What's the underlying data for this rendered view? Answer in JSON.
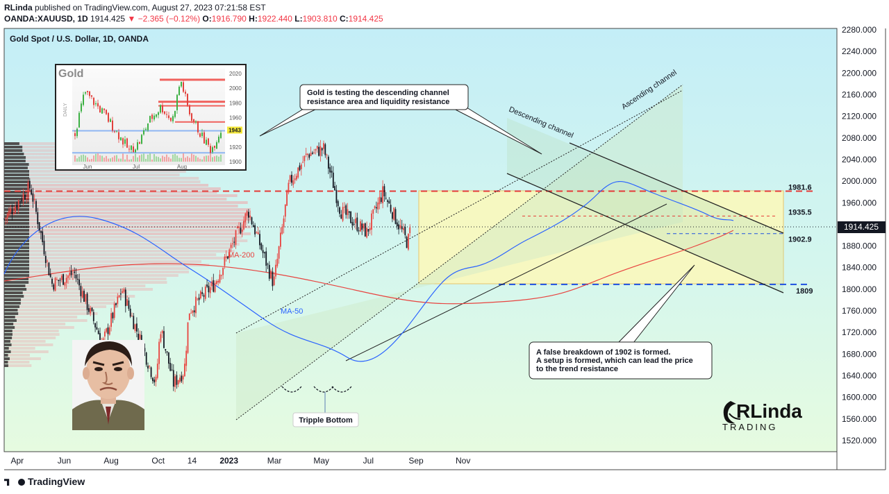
{
  "header": {
    "author": "RLinda",
    "published_text": "published on TradingView.com, August 27, 2023 07:21:58 EST",
    "symbol": "OANDA:XAUUSD, 1D",
    "last": "1914.425",
    "change": "−2.365 (−0.12%)",
    "o_label": "O:",
    "o": "1916.790",
    "h_label": "H:",
    "h": "1922.440",
    "l_label": "L:",
    "l": "1903.810",
    "c_label": "C:",
    "c": "1914.425"
  },
  "footer": {
    "brand": "TradingView"
  },
  "colors": {
    "bg_top": "#c9f0f7",
    "bg_bottom": "#e4fbe0",
    "up": "#e8433f",
    "down": "#131722",
    "ma200": "#e8433f",
    "ma50": "#2962ff",
    "resistance": "#e53935",
    "support": "#1e50e0",
    "zone_yellow": "#fdf8b8",
    "channel_fill": "#cfe9c8"
  },
  "chart_data": {
    "type": "candlestick",
    "title": "Gold Spot / U.S. Dollar, 1D, OANDA",
    "y_axis": {
      "range": [
        1500,
        2285
      ],
      "ticks": [
        "2280.000",
        "2240.000",
        "2200.000",
        "2160.000",
        "2120.000",
        "2080.000",
        "2040.000",
        "2000.000",
        "1960.000",
        "1920.000",
        "1880.000",
        "1840.000",
        "1800.000",
        "1760.000",
        "1720.000",
        "1680.000",
        "1640.000",
        "1600.000",
        "1560.000",
        "1520.000"
      ],
      "current_price_label": "1914.425"
    },
    "x_axis": {
      "ticks": [
        "Apr",
        "Jun",
        "Aug",
        "Oct",
        "14",
        "2023",
        "Mar",
        "May",
        "Jul",
        "Sep",
        "Nov"
      ]
    },
    "price_levels": [
      {
        "label": "1981.6",
        "value": 1981.6
      },
      {
        "label": "1935.5",
        "value": 1935.5
      },
      {
        "label": "1902.9",
        "value": 1902.9
      },
      {
        "label": "1809",
        "value": 1809
      }
    ],
    "indicators": [
      {
        "name": "MA-200",
        "color": "#e8433f"
      },
      {
        "name": "MA-50",
        "color": "#2962ff"
      }
    ],
    "close_path": [
      {
        "d": "2022-03-15",
        "v": 1930
      },
      {
        "d": "2022-04-18",
        "v": 1990
      },
      {
        "d": "2022-05-16",
        "v": 1810
      },
      {
        "d": "2022-06-14",
        "v": 1830
      },
      {
        "d": "2022-07-21",
        "v": 1700
      },
      {
        "d": "2022-08-15",
        "v": 1800
      },
      {
        "d": "2022-09-28",
        "v": 1625
      },
      {
        "d": "2022-10-04",
        "v": 1730
      },
      {
        "d": "2022-10-21",
        "v": 1625
      },
      {
        "d": "2022-11-04",
        "v": 1650
      },
      {
        "d": "2022-11-10",
        "v": 1760
      },
      {
        "d": "2022-12-13",
        "v": 1810
      },
      {
        "d": "2023-01-26",
        "v": 1945
      },
      {
        "d": "2023-02-28",
        "v": 1810
      },
      {
        "d": "2023-03-20",
        "v": 1995
      },
      {
        "d": "2023-04-13",
        "v": 2050
      },
      {
        "d": "2023-05-04",
        "v": 2060
      },
      {
        "d": "2023-05-26",
        "v": 1945
      },
      {
        "d": "2023-06-29",
        "v": 1905
      },
      {
        "d": "2023-07-20",
        "v": 1980
      },
      {
        "d": "2023-08-21",
        "v": 1885
      },
      {
        "d": "2023-08-25",
        "v": 1914
      }
    ],
    "annotations": {
      "descending_channel": "Descending channel",
      "ascending_channel": "Ascending channel",
      "callout_top_line1": "Gold is testing the descending channel",
      "callout_top_line2": "resistance area and liquidity resistance",
      "callout_bottom_line1": "A false breakdown of 1902 is formed.",
      "callout_bottom_line2": "A setup is formed, which can lead the price",
      "callout_bottom_line3": "to the trend resistance",
      "tripple_bottom": "Tripple Bottom"
    },
    "inset": {
      "title": "Gold",
      "side_label": "DAILY",
      "y_ticks": [
        "2020",
        "2000",
        "1980",
        "1960",
        "1943",
        "1920",
        "1900"
      ],
      "x_ticks": [
        "Jun",
        "Jul",
        "Aug"
      ],
      "price_tag": "1943"
    }
  },
  "branding": {
    "logo_line1": "RLinda",
    "logo_line2": "TRADING"
  }
}
